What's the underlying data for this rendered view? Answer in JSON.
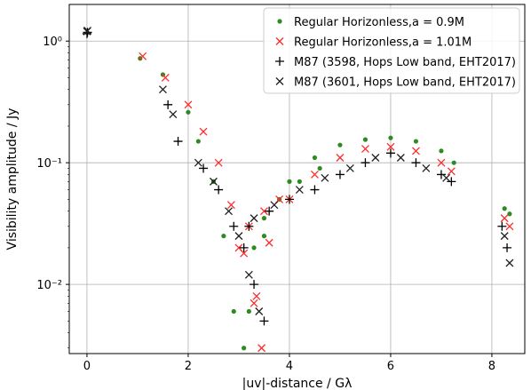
{
  "chart_data": {
    "type": "scatter",
    "title": "",
    "xlabel": "|uv|-distance / Gλ",
    "ylabel": "Visibility amplitude / Jy",
    "xlim": [
      -0.35,
      8.65
    ],
    "ylim": [
      0.0027,
      2.0
    ],
    "yscale": "log",
    "grid": true,
    "legend_position": "top-right",
    "x_ticks": [
      0,
      2,
      4,
      6,
      8
    ],
    "x_tick_labels": [
      "0",
      "2",
      "4",
      "6",
      "8"
    ],
    "y_ticks": [
      0.01,
      0.1,
      1
    ],
    "y_tick_labels": [
      "10⁻²",
      "10⁻¹",
      "10⁰"
    ],
    "series": [
      {
        "name": "Regular Horizonless,a = 0.9M",
        "marker": "dot",
        "color": "#2e8b22",
        "segments": [
          {
            "x": [
              1.05,
              1.5
            ],
            "y": [
              0.72,
              0.53
            ]
          },
          {
            "x": [
              2.0,
              2.2,
              2.5,
              2.7,
              2.9,
              3.1
            ],
            "y": [
              0.26,
              0.15,
              0.07,
              0.025,
              0.006,
              0.003
            ]
          },
          {
            "x": [
              3.2,
              3.5,
              4.0,
              4.5,
              5.0,
              5.5,
              6.0,
              6.5,
              7.0,
              7.25
            ],
            "y": [
              0.006,
              0.025,
              0.07,
              0.11,
              0.14,
              0.155,
              0.16,
              0.15,
              0.125,
              0.1
            ]
          },
          {
            "x": [
              3.3,
              3.5,
              3.8,
              4.2,
              4.6
            ],
            "y": [
              0.02,
              0.035,
              0.05,
              0.07,
              0.09
            ]
          },
          {
            "x": [
              8.25,
              8.35
            ],
            "y": [
              0.042,
              0.038
            ]
          }
        ]
      },
      {
        "name": "Regular Horizonless,a = 1.01M",
        "marker": "x",
        "color": "#ff2a2a",
        "segments": [
          {
            "x": [
              1.1,
              1.55
            ],
            "y": [
              0.75,
              0.5
            ]
          },
          {
            "x": [
              2.0,
              2.3,
              2.6,
              2.85,
              3.1,
              3.3,
              3.45
            ],
            "y": [
              0.3,
              0.18,
              0.1,
              0.045,
              0.018,
              0.007,
              0.003
            ]
          },
          {
            "x": [
              3.35,
              3.6,
              4.0,
              4.5,
              5.0,
              5.5,
              6.0,
              6.5,
              7.0,
              7.2
            ],
            "y": [
              0.008,
              0.022,
              0.05,
              0.08,
              0.11,
              0.13,
              0.135,
              0.125,
              0.1,
              0.085
            ]
          },
          {
            "x": [
              3.0,
              3.2,
              3.5,
              3.8
            ],
            "y": [
              0.02,
              0.03,
              0.04,
              0.05
            ]
          },
          {
            "x": [
              8.25,
              8.35
            ],
            "y": [
              0.035,
              0.03
            ]
          }
        ]
      },
      {
        "name": "M87 (3598, Hops Low band, EHT2017)",
        "marker": "+",
        "color": "#000000",
        "segments": [
          {
            "x": [
              0.0,
              0.01
            ],
            "y": [
              1.15,
              1.18
            ]
          },
          {
            "x": [
              1.6,
              1.8
            ],
            "y": [
              0.3,
              0.15
            ]
          },
          {
            "x": [
              2.3,
              2.6,
              2.9,
              3.1,
              3.3,
              3.5
            ],
            "y": [
              0.09,
              0.06,
              0.03,
              0.02,
              0.01,
              0.005
            ]
          },
          {
            "x": [
              3.2,
              3.6,
              4.0,
              4.5,
              5.0,
              5.5,
              6.0,
              6.5,
              7.0,
              7.2
            ],
            "y": [
              0.03,
              0.04,
              0.05,
              0.06,
              0.08,
              0.1,
              0.12,
              0.1,
              0.08,
              0.07
            ]
          },
          {
            "x": [
              8.2,
              8.3
            ],
            "y": [
              0.03,
              0.02
            ]
          }
        ]
      },
      {
        "name": "M87 (3601, Hops Low band, EHT2017)",
        "marker": "x",
        "color": "#202020",
        "segments": [
          {
            "x": [
              0.0,
              0.01
            ],
            "y": [
              1.2,
              1.22
            ]
          },
          {
            "x": [
              1.5,
              1.7
            ],
            "y": [
              0.4,
              0.25
            ]
          },
          {
            "x": [
              2.2,
              2.5,
              2.8,
              3.0,
              3.2,
              3.4
            ],
            "y": [
              0.1,
              0.07,
              0.04,
              0.025,
              0.012,
              0.006
            ]
          },
          {
            "x": [
              3.3,
              3.7,
              4.2,
              4.7,
              5.2,
              5.7,
              6.2,
              6.7,
              7.1
            ],
            "y": [
              0.035,
              0.045,
              0.06,
              0.075,
              0.09,
              0.11,
              0.11,
              0.09,
              0.075
            ]
          },
          {
            "x": [
              8.25,
              8.35
            ],
            "y": [
              0.025,
              0.015
            ]
          }
        ]
      }
    ]
  }
}
